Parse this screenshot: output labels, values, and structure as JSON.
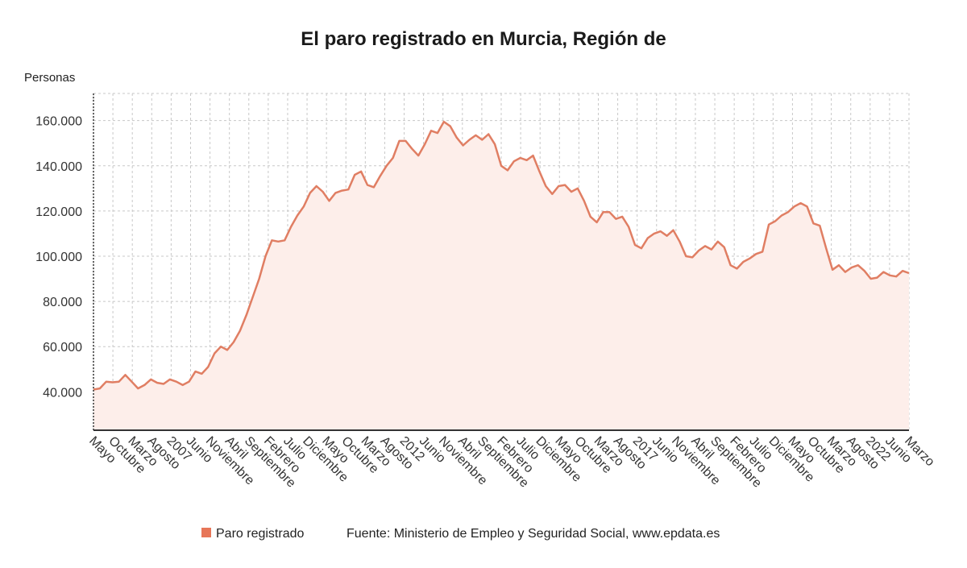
{
  "chart_data": {
    "type": "area",
    "title": "El paro registrado en Murcia, Región de",
    "ylabel": "Personas",
    "xlabel": "",
    "ylim": [
      23000,
      172000
    ],
    "yticks": [
      40000,
      60000,
      80000,
      100000,
      120000,
      140000,
      160000
    ],
    "ytick_labels": [
      "40.000",
      "60.000",
      "80.000",
      "100.000",
      "120.000",
      "140.000",
      "160.000"
    ],
    "grid": true,
    "colors": {
      "line": "#e07e63",
      "fill": "#fdeeea",
      "grid": "#c8c8c8",
      "axis": "#333333"
    },
    "x_start": "2005-05",
    "x_end": "2023-03",
    "xticks": [
      {
        "date": "2005-05",
        "label": "Mayo"
      },
      {
        "date": "2005-10",
        "label": "Octubre"
      },
      {
        "date": "2006-03",
        "label": "Marzo"
      },
      {
        "date": "2006-08",
        "label": "Agosto"
      },
      {
        "date": "2007-01",
        "label": "2007"
      },
      {
        "date": "2007-06",
        "label": "Junio"
      },
      {
        "date": "2007-11",
        "label": "Noviembre"
      },
      {
        "date": "2008-04",
        "label": "Abril"
      },
      {
        "date": "2008-09",
        "label": "Septiembre"
      },
      {
        "date": "2009-02",
        "label": "Febrero"
      },
      {
        "date": "2009-07",
        "label": "Julio"
      },
      {
        "date": "2009-12",
        "label": "Diciembre"
      },
      {
        "date": "2010-05",
        "label": "Mayo"
      },
      {
        "date": "2010-10",
        "label": "Octubre"
      },
      {
        "date": "2011-03",
        "label": "Marzo"
      },
      {
        "date": "2011-08",
        "label": "Agosto"
      },
      {
        "date": "2012-01",
        "label": "2012"
      },
      {
        "date": "2012-06",
        "label": "Junio"
      },
      {
        "date": "2012-11",
        "label": "Noviembre"
      },
      {
        "date": "2013-04",
        "label": "Abril"
      },
      {
        "date": "2013-09",
        "label": "Septiembre"
      },
      {
        "date": "2014-02",
        "label": "Febrero"
      },
      {
        "date": "2014-07",
        "label": "Julio"
      },
      {
        "date": "2014-12",
        "label": "Diciembre"
      },
      {
        "date": "2015-05",
        "label": "Mayo"
      },
      {
        "date": "2015-10",
        "label": "Octubre"
      },
      {
        "date": "2016-03",
        "label": "Marzo"
      },
      {
        "date": "2016-08",
        "label": "Agosto"
      },
      {
        "date": "2017-01",
        "label": "2017"
      },
      {
        "date": "2017-06",
        "label": "Junio"
      },
      {
        "date": "2017-11",
        "label": "Noviembre"
      },
      {
        "date": "2018-04",
        "label": "Abril"
      },
      {
        "date": "2018-09",
        "label": "Septiembre"
      },
      {
        "date": "2019-02",
        "label": "Febrero"
      },
      {
        "date": "2019-07",
        "label": "Julio"
      },
      {
        "date": "2019-12",
        "label": "Diciembre"
      },
      {
        "date": "2020-05",
        "label": "Mayo"
      },
      {
        "date": "2020-10",
        "label": "Octubre"
      },
      {
        "date": "2021-03",
        "label": "Marzo"
      },
      {
        "date": "2021-08",
        "label": "Agosto"
      },
      {
        "date": "2022-01",
        "label": "2022"
      },
      {
        "date": "2022-06",
        "label": "Junio"
      },
      {
        "date": "2023-03",
        "label": "Marzo"
      }
    ],
    "series": [
      {
        "name": "Paro registrado",
        "points": [
          [
            "2005-05",
            41000
          ],
          [
            "2005-07",
            41500
          ],
          [
            "2005-09",
            44500
          ],
          [
            "2005-11",
            44200
          ],
          [
            "2006-01",
            44500
          ],
          [
            "2006-03",
            47500
          ],
          [
            "2006-05",
            44500
          ],
          [
            "2006-06",
            41500
          ],
          [
            "2006-08",
            43000
          ],
          [
            "2006-10",
            45500
          ],
          [
            "2006-12",
            44000
          ],
          [
            "2007-02",
            43500
          ],
          [
            "2007-04",
            45500
          ],
          [
            "2007-06",
            44500
          ],
          [
            "2007-08",
            43000
          ],
          [
            "2007-10",
            44500
          ],
          [
            "2007-12",
            49000
          ],
          [
            "2008-02",
            48000
          ],
          [
            "2008-04",
            51000
          ],
          [
            "2008-06",
            57000
          ],
          [
            "2008-07",
            60000
          ],
          [
            "2008-08",
            58500
          ],
          [
            "2008-10",
            62000
          ],
          [
            "2008-12",
            67000
          ],
          [
            "2009-02",
            74000
          ],
          [
            "2009-04",
            82000
          ],
          [
            "2009-06",
            90000
          ],
          [
            "2009-08",
            100000
          ],
          [
            "2009-10",
            107000
          ],
          [
            "2009-12",
            106500
          ],
          [
            "2010-01",
            107000
          ],
          [
            "2010-03",
            113000
          ],
          [
            "2010-05",
            118000
          ],
          [
            "2010-07",
            122000
          ],
          [
            "2010-09",
            128000
          ],
          [
            "2010-11",
            131000
          ],
          [
            "2011-01",
            128500
          ],
          [
            "2011-03",
            124500
          ],
          [
            "2011-05",
            128000
          ],
          [
            "2011-07",
            129000
          ],
          [
            "2011-09",
            129500
          ],
          [
            "2011-11",
            136000
          ],
          [
            "2012-01",
            137500
          ],
          [
            "2012-03",
            131500
          ],
          [
            "2012-05",
            130500
          ],
          [
            "2012-07",
            135500
          ],
          [
            "2012-09",
            140000
          ],
          [
            "2012-11",
            143500
          ],
          [
            "2013-01",
            151000
          ],
          [
            "2013-03",
            151000
          ],
          [
            "2013-05",
            147500
          ],
          [
            "2013-07",
            144500
          ],
          [
            "2013-09",
            149500
          ],
          [
            "2013-11",
            155500
          ],
          [
            "2014-01",
            154500
          ],
          [
            "2014-03",
            159500
          ],
          [
            "2014-05",
            157500
          ],
          [
            "2014-07",
            152500
          ],
          [
            "2014-09",
            149000
          ],
          [
            "2014-11",
            151500
          ],
          [
            "2015-01",
            153500
          ],
          [
            "2015-03",
            151500
          ],
          [
            "2015-05",
            154000
          ],
          [
            "2015-07",
            149500
          ],
          [
            "2015-09",
            140000
          ],
          [
            "2015-11",
            138000
          ],
          [
            "2016-01",
            142000
          ],
          [
            "2016-03",
            143500
          ],
          [
            "2016-05",
            142500
          ],
          [
            "2016-07",
            144500
          ],
          [
            "2016-09",
            137500
          ],
          [
            "2016-11",
            131000
          ],
          [
            "2017-01",
            127500
          ],
          [
            "2017-03",
            131000
          ],
          [
            "2017-05",
            131500
          ],
          [
            "2017-07",
            128500
          ],
          [
            "2017-09",
            130000
          ],
          [
            "2017-11",
            124500
          ],
          [
            "2018-01",
            117500
          ],
          [
            "2018-03",
            115000
          ],
          [
            "2018-05",
            119500
          ],
          [
            "2018-07",
            119500
          ],
          [
            "2018-09",
            116500
          ],
          [
            "2018-11",
            117500
          ],
          [
            "2019-01",
            113000
          ],
          [
            "2019-03",
            105000
          ],
          [
            "2019-05",
            103500
          ],
          [
            "2019-07",
            108000
          ],
          [
            "2019-09",
            110000
          ],
          [
            "2019-11",
            111000
          ],
          [
            "2020-01",
            109000
          ],
          [
            "2020-03",
            111500
          ],
          [
            "2020-05",
            106500
          ],
          [
            "2020-07",
            100000
          ],
          [
            "2020-09",
            99500
          ],
          [
            "2020-11",
            102500
          ],
          [
            "2021-01",
            104500
          ],
          [
            "2021-03",
            103000
          ],
          [
            "2021-05",
            106500
          ],
          [
            "2021-07",
            104000
          ],
          [
            "2021-09",
            96000
          ],
          [
            "2021-11",
            94500
          ],
          [
            "2022-01",
            97500
          ],
          [
            "2022-03",
            99000
          ],
          [
            "2022-05",
            101000
          ],
          [
            "2022-07",
            102000
          ],
          [
            "2022-09",
            114000
          ],
          [
            "2022-11",
            115500
          ],
          [
            "2023-01",
            118000
          ],
          [
            "2023-03",
            119500
          ],
          [
            "2023-05",
            122000
          ],
          [
            "2023-07",
            123500
          ],
          [
            "2023-09",
            122000
          ],
          [
            "2023-11",
            114500
          ],
          [
            "2024-01",
            113500
          ],
          [
            "2024-03",
            103500
          ],
          [
            "2024-05",
            94000
          ],
          [
            "2024-07",
            96000
          ],
          [
            "2024-09",
            93000
          ],
          [
            "2024-11",
            95000
          ],
          [
            "2025-01",
            96000
          ],
          [
            "2025-03",
            93500
          ],
          [
            "2025-05",
            90000
          ],
          [
            "2025-07",
            90500
          ],
          [
            "2025-09",
            93000
          ],
          [
            "2025-11",
            91500
          ],
          [
            "2026-01",
            91000
          ],
          [
            "2026-03",
            93500
          ],
          [
            "2026-04",
            92500
          ]
        ]
      }
    ],
    "legend": {
      "position": "bottom",
      "label": "Paro registrado"
    }
  },
  "footer": {
    "legend_label": "Paro registrado",
    "source": "Fuente: Ministerio de Empleo y Seguridad Social, www.epdata.es"
  }
}
